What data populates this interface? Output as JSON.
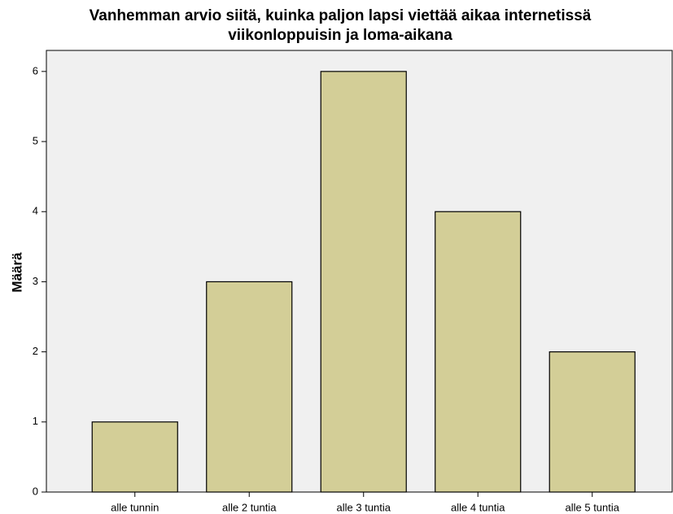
{
  "chart_data": {
    "type": "bar",
    "title": [
      "Vanhemman arvio siitä, kuinka paljon lapsi viettää aikaa internetissä",
      "viikonloppuisin ja loma-aikana"
    ],
    "y_label": "Määrä",
    "categories": [
      "alle tunnin",
      "alle 2 tuntia",
      "alle 3 tuntia",
      "alle 4 tuntia",
      "alle 5 tuntia"
    ],
    "values": [
      1,
      3,
      6,
      4,
      2
    ],
    "color": "#d3ce97",
    "ylim": [
      0,
      6.3
    ],
    "yticks": [
      0,
      1,
      2,
      3,
      4,
      5,
      6
    ],
    "grid": false
  }
}
